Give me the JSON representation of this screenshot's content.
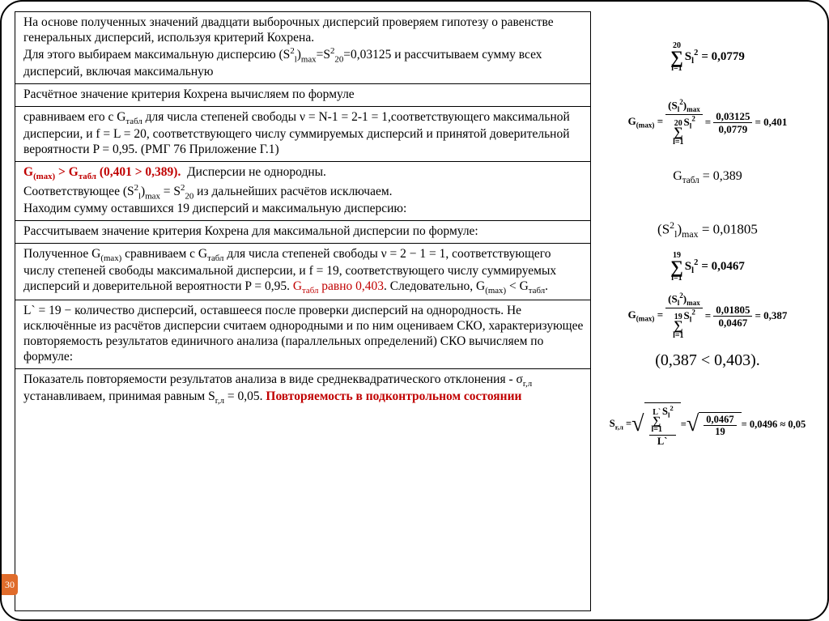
{
  "page_number": "30",
  "rows": [
    {
      "html": "На основе полученных значений двадцати выборочных дисперсий проверяем гипотезу о равенстве генеральных дисперсий, используя критерий Кохрена.<br>Для этого выбираем максимальную дисперсию (S<sup>2</sup><sub>l</sub>)<sub>max</sub>=S<sup>2</sup><sub>20</sub>=0,03125 и рассчитываем сумму всех дисперсий, включая максимальную"
    },
    {
      "html": "Расчётное значение критерия Кохрена вычисляем по формуле"
    },
    {
      "html": "сравниваем его с G<sub>табл</sub> для числа степеней свободы ν = N-1 = 2-1 = 1,соответствующего максимальной дисперсии, и f = L = 20, соответствующего числу суммируемых дисперсий и принятой доверительной вероятности P = 0,95. (РМГ 76 Приложение Г.1)"
    },
    {
      "html": "<span class='redbold'>G<sub>(max)</sub> &gt; G<sub>табл</sub> (0,401 &gt; 0,389).</span>&nbsp;&nbsp;Дисперсии не однородны.<br>Соответствующее (S<sup>2</sup><sub>l</sub>)<sub>max</sub> = S<sup>2</sup><sub>20</sub> из дальнейших расчётов исключаем.<br>Находим сумму оставшихся 19 дисперсий и максимальную дисперсию:"
    },
    {
      "html": "Рассчитываем значение критерия Кохрена для максимальной дисперсии по формуле:"
    },
    {
      "html": "Полученное G<sub>(max)</sub> сравниваем с G<sub>табл</sub> для числа степеней свободы ν = 2 − 1 = 1, соответствующего числу степеней свободы максимальной дисперсии, и f = 19, соответствующего числу суммируемых дисперсий и доверительной вероятности P = 0,95. <span class='red'>G<sub>табл</sub> равно 0,403</span>. Следовательно, G<sub>(max)</sub> &lt; G<sub>табл</sub>."
    },
    {
      "html": "L` = 19 − количество дисперсий, оставшееся после проверки дисперсий на однородность. Не исключённые из расчётов дисперсии считаем однородными и по ним оцениваем СКО, характеризующее повторяемость результатов единичного анализа (параллельных определений) СКО вычисляем по формуле:"
    },
    {
      "html": "Показатель повторяемости результатов анализа в виде среднеквадратического отклонения - σ<sub>r,л</sub> устанавливаем, принимая равным S<sub>r,л</sub> = 0,05. <span class='redbold'>Повторяемость в подконтрольном состоянии</span>"
    }
  ],
  "right": {
    "sum1": {
      "upper": "20",
      "lower": "l=1",
      "expr": "S<sub>l</sub><sup>2</sup>",
      "eq": "= 0,0779"
    },
    "gmax1": {
      "numL": "(S<sub>l</sub><sup>2</sup>)<sub>max</sub>",
      "denUpper": "20",
      "denLower": "l=1",
      "denExpr": "S<sub>l</sub><sup>2</sup>",
      "numR": "0,03125",
      "denR": "0,0779",
      "res": "= 0,401",
      "lhs": "G<sub>(max)</sub> ="
    },
    "gtabl": "G<sub>табл</sub> = 0,389",
    "s2max": "(S<sup>2</sup><sub>l</sub>)<sub>max</sub> = 0,01805",
    "sum2": {
      "upper": "19",
      "lower": "l=1",
      "expr": "S<sub>l</sub><sup>2</sup>",
      "eq": "= 0,0467"
    },
    "gmax2": {
      "numL": "(S<sub>l</sub><sup>2</sup>)<sub>max</sub>",
      "denUpper": "19",
      "denLower": "l=1",
      "denExpr": "S<sub>l</sub><sup>2</sup>",
      "numR": "0,01805",
      "denR": "0,0467",
      "res": "= 0,387",
      "lhs": "G<sub>(max)</sub> ="
    },
    "compare": "(0,387 &lt; 0,403).",
    "srl": {
      "lhs": "S<sub>r,л</sub> =",
      "numUpper": "L`",
      "numLower": "l=1",
      "numExpr": "S<sub>l</sub><sup>2</sup>",
      "den": "L`",
      "numR": "0,0467",
      "denR": "19",
      "res": "= 0,0496 ≈ 0,05"
    }
  }
}
